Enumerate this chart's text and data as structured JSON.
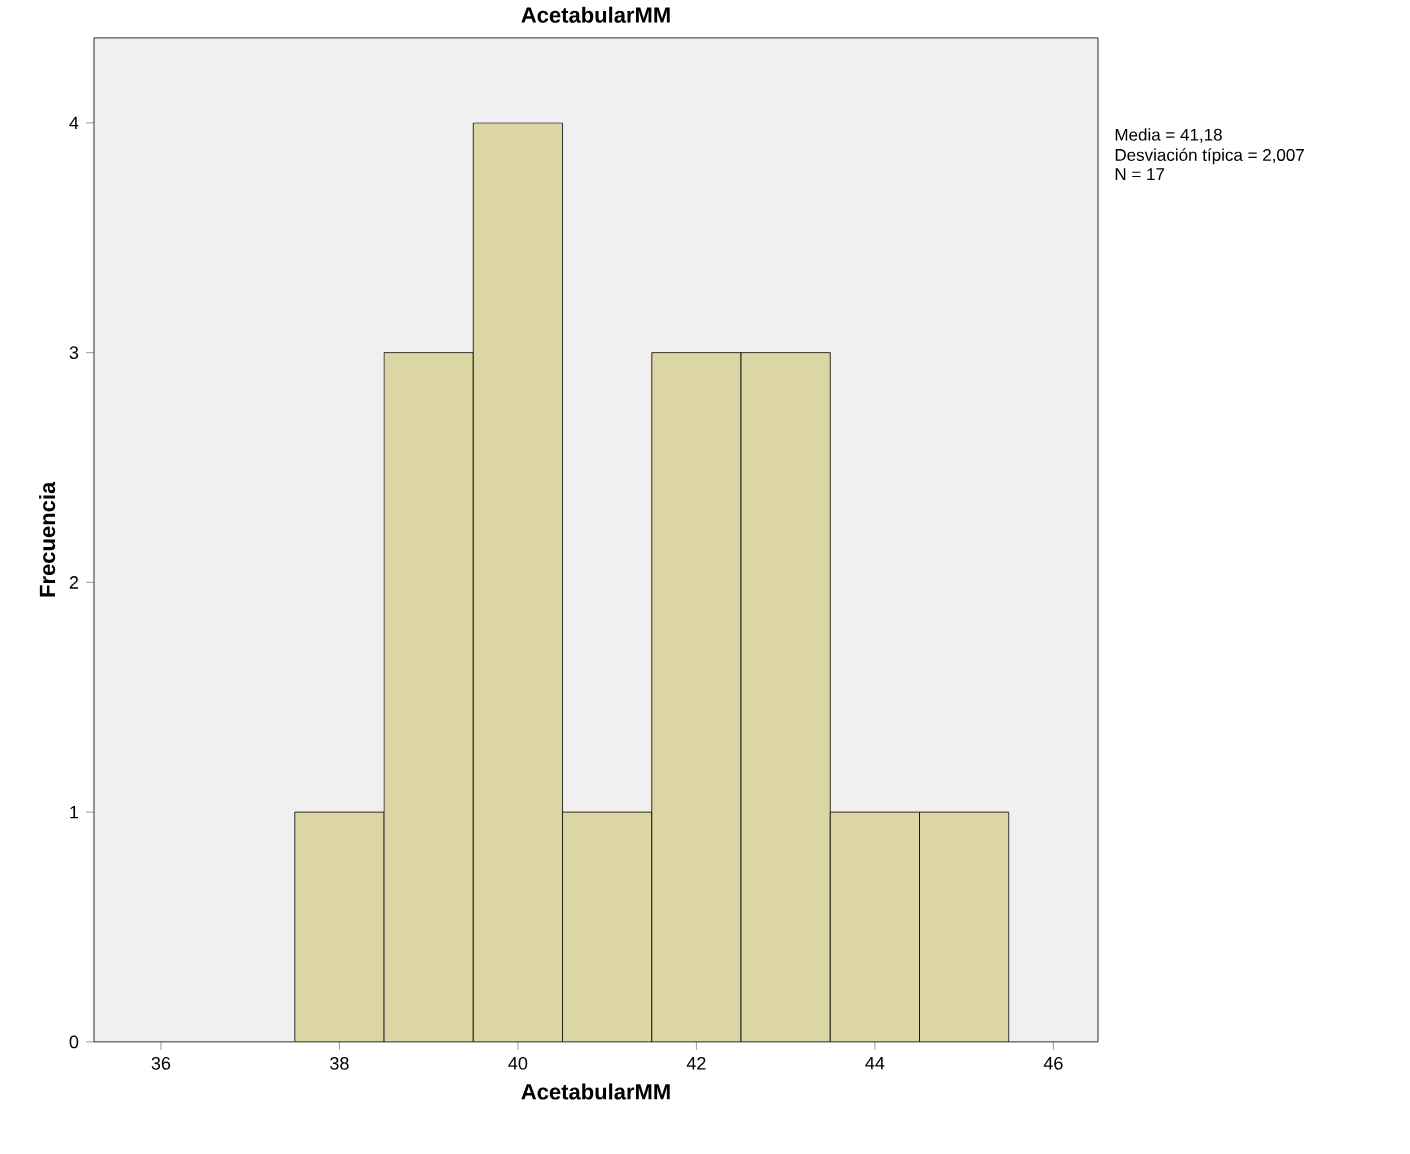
{
  "chart_data": {
    "type": "histogram",
    "title": "AcetabularMM",
    "xlabel": "AcetabularMM",
    "ylabel": "Frecuencia",
    "bins": [
      37.5,
      38.5,
      39.5,
      40.5,
      41.5,
      42.5,
      43.5,
      44.5,
      45.5
    ],
    "values": [
      1,
      3,
      4,
      1,
      3,
      3,
      1,
      1
    ],
    "color": "#dcd6a5",
    "xlim": [
      35.25,
      46.5
    ],
    "ylim": [
      0,
      4.37
    ],
    "xticks": [
      36,
      38,
      40,
      42,
      44,
      46
    ],
    "yticks": [
      0,
      1,
      2,
      3,
      4
    ],
    "annotations": [
      "Media = 41,18",
      "Desviación típica = 2,007",
      "N = 17"
    ]
  }
}
